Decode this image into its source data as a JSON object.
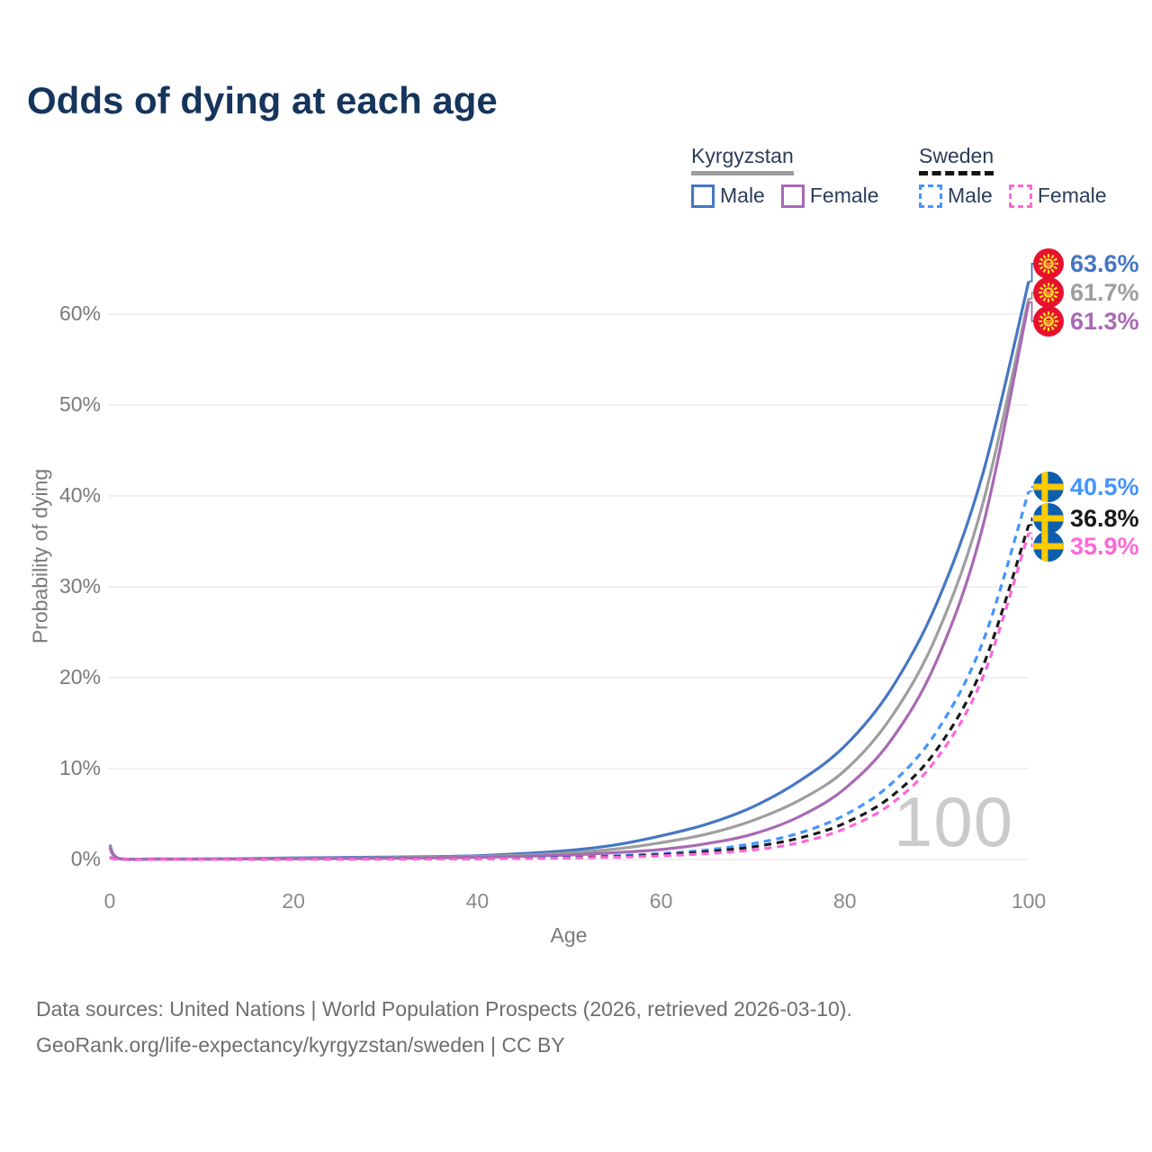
{
  "title": "Odds of dying at each age",
  "legend": {
    "groups": [
      {
        "name": "Kyrgyzstan",
        "line_style": "solid",
        "underline_color": "#9e9e9e",
        "items": [
          {
            "label": "Male",
            "color": "#4576c4"
          },
          {
            "label": "Female",
            "color": "#a869b4"
          }
        ]
      },
      {
        "name": "Sweden",
        "line_style": "dashed",
        "underline_color": "#141414",
        "items": [
          {
            "label": "Male",
            "color": "#4494ff"
          },
          {
            "label": "Female",
            "color": "#ff66d9"
          }
        ]
      }
    ]
  },
  "watermark": "100",
  "footer": {
    "line1": "Data sources: United Nations | World Population Prospects (2026, retrieved 2026-03-10).",
    "line2": "GeoRank.org/life-expectancy/kyrgyzstan/sweden | CC BY"
  },
  "colors": {
    "title": "#16355c",
    "axis_text": "#7a7a7a",
    "gridline": "#ececec",
    "watermark": "#cbcbcb",
    "kyrgyzstan_flag_red": "#e8112d",
    "kyrgyzstan_flag_yellow": "#ffde2e",
    "sweden_flag_blue": "#0d5eaf",
    "sweden_flag_yellow": "#fecb00"
  },
  "chart_data": {
    "type": "line",
    "title": "Odds of dying at each age",
    "xlabel": "Age",
    "ylabel": "Probability of dying",
    "x_ticks": [
      0,
      20,
      40,
      60,
      80,
      100
    ],
    "y_ticks_percent": [
      0,
      10,
      20,
      30,
      40,
      50,
      60
    ],
    "xlim": [
      0,
      100
    ],
    "ylim_percent": [
      0,
      66
    ],
    "grid": "horizontal",
    "legend_position": "top-right",
    "x": [
      0,
      1,
      5,
      10,
      15,
      20,
      25,
      30,
      35,
      40,
      45,
      50,
      55,
      60,
      65,
      70,
      75,
      80,
      85,
      90,
      95,
      100
    ],
    "series": [
      {
        "name": "Kyrgyzstan Male",
        "country": "Kyrgyzstan",
        "sex": "male",
        "color": "#4576c4",
        "dash": false,
        "end_label": "63.6%",
        "values": [
          1.6,
          0.12,
          0.06,
          0.06,
          0.1,
          0.18,
          0.22,
          0.26,
          0.32,
          0.42,
          0.65,
          1.0,
          1.6,
          2.6,
          3.9,
          5.8,
          8.6,
          12.5,
          18.7,
          28.2,
          42.4,
          63.6
        ]
      },
      {
        "name": "Kyrgyzstan",
        "country": "Kyrgyzstan",
        "sex": "both",
        "color": "#9e9e9e",
        "dash": false,
        "end_label": "61.7%",
        "values": [
          1.45,
          0.1,
          0.05,
          0.05,
          0.08,
          0.13,
          0.16,
          0.2,
          0.25,
          0.33,
          0.48,
          0.72,
          1.15,
          1.85,
          2.8,
          4.3,
          6.5,
          9.8,
          15.6,
          24.7,
          39.1,
          61.7
        ]
      },
      {
        "name": "Kyrgyzstan Female",
        "country": "Kyrgyzstan",
        "sex": "female",
        "color": "#a869b4",
        "dash": false,
        "end_label": "61.3%",
        "values": [
          1.3,
          0.09,
          0.04,
          0.04,
          0.06,
          0.09,
          0.11,
          0.14,
          0.18,
          0.25,
          0.35,
          0.5,
          0.75,
          1.1,
          1.75,
          2.8,
          4.7,
          7.8,
          13.1,
          21.9,
          36.6,
          61.3
        ]
      },
      {
        "name": "Sweden Male",
        "country": "Sweden",
        "sex": "male",
        "color": "#4494ff",
        "dash": true,
        "end_label": "40.5%",
        "values": [
          0.25,
          0.02,
          0.01,
          0.01,
          0.03,
          0.05,
          0.06,
          0.07,
          0.09,
          0.11,
          0.16,
          0.25,
          0.4,
          0.65,
          1.05,
          1.75,
          2.9,
          4.9,
          8.3,
          14.1,
          23.9,
          40.5
        ]
      },
      {
        "name": "Sweden",
        "country": "Sweden",
        "sex": "both",
        "color": "#1a1a1a",
        "dash": true,
        "end_label": "36.8%",
        "values": [
          0.22,
          0.02,
          0.01,
          0.01,
          0.02,
          0.04,
          0.05,
          0.06,
          0.07,
          0.09,
          0.13,
          0.2,
          0.32,
          0.52,
          0.85,
          1.4,
          2.35,
          4.0,
          6.9,
          12.1,
          21.2,
          36.8
        ]
      },
      {
        "name": "Sweden Female",
        "country": "Sweden",
        "sex": "female",
        "color": "#ff66d9",
        "dash": true,
        "end_label": "35.9%",
        "values": [
          0.2,
          0.02,
          0.01,
          0.01,
          0.02,
          0.03,
          0.04,
          0.04,
          0.05,
          0.08,
          0.11,
          0.16,
          0.25,
          0.4,
          0.65,
          1.05,
          1.85,
          3.4,
          6.1,
          11.1,
          20.0,
          35.9
        ]
      }
    ]
  }
}
